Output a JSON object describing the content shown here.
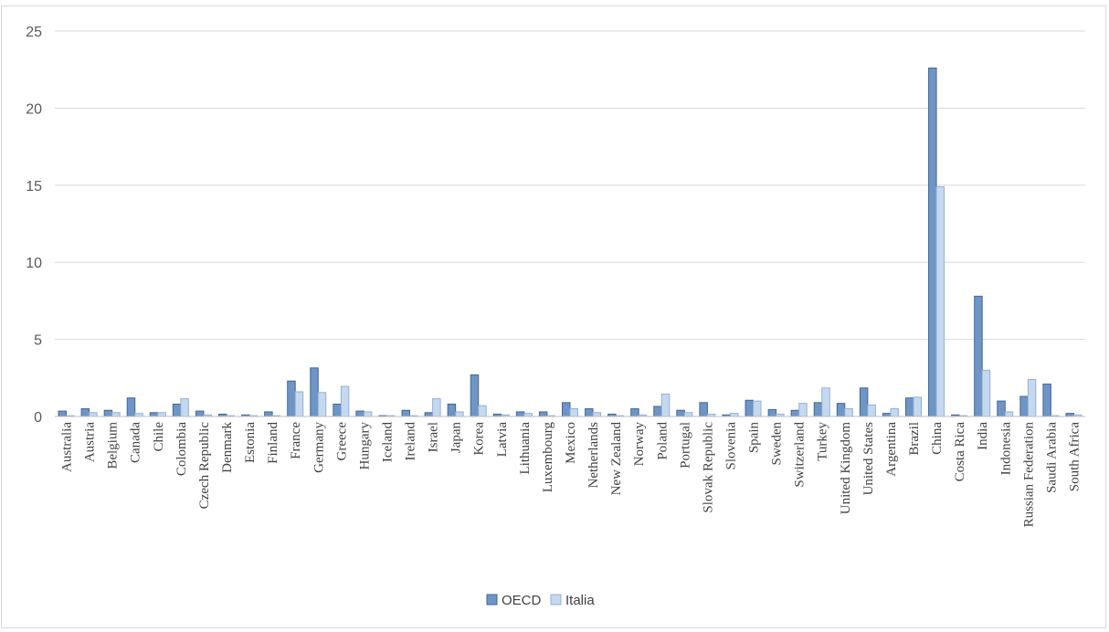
{
  "chart_data": {
    "type": "bar",
    "title": "",
    "xlabel": "",
    "ylabel": "",
    "ylim": [
      0,
      25
    ],
    "yticks": [
      0,
      5,
      10,
      15,
      20,
      25
    ],
    "grid": true,
    "legend_position": "bottom",
    "categories": [
      "Australia",
      "Austria",
      "Belgium",
      "Canada",
      "Chile",
      "Colombia",
      "Czech Republic",
      "Denmark",
      "Estonia",
      "Finland",
      "France",
      "Germany",
      "Greece",
      "Hungary",
      "Iceland",
      "Ireland",
      "Israel",
      "Japan",
      "Korea",
      "Latvia",
      "Lithuania",
      "Luxembourg",
      "Mexico",
      "Netherlands",
      "New Zealand",
      "Norway",
      "Poland",
      "Portugal",
      "Slovak Republic",
      "Slovenia",
      "Spain",
      "Sweden",
      "Switzerland",
      "Turkey",
      "United Kingdom",
      "United States",
      "Argentina",
      "Brazil",
      "China",
      "Costa Rica",
      "India",
      "Indonesia",
      "Russian Federation",
      "Saudi Arabia",
      "South Africa"
    ],
    "series": [
      {
        "name": "OECD",
        "color": "#6f95c4",
        "values": [
          0.35,
          0.5,
          0.4,
          1.2,
          0.25,
          0.8,
          0.35,
          0.15,
          0.1,
          0.3,
          2.3,
          3.15,
          0.8,
          0.35,
          0.05,
          0.4,
          0.25,
          0.8,
          2.7,
          0.15,
          0.3,
          0.3,
          0.9,
          0.5,
          0.15,
          0.5,
          0.65,
          0.4,
          0.9,
          0.1,
          1.05,
          0.45,
          0.4,
          0.9,
          0.85,
          1.85,
          0.2,
          1.2,
          22.6,
          0.1,
          7.8,
          1.0,
          1.3,
          2.1,
          0.2
        ]
      },
      {
        "name": "Italia",
        "color": "#c6d8ee",
        "values": [
          0.05,
          0.25,
          0.25,
          0.2,
          0.25,
          1.15,
          0.1,
          0.05,
          0.05,
          0.05,
          1.6,
          1.55,
          1.95,
          0.3,
          0.05,
          0.05,
          1.15,
          0.3,
          0.7,
          0.1,
          0.2,
          0.05,
          0.5,
          0.25,
          0.05,
          0.1,
          1.45,
          0.25,
          0.15,
          0.2,
          1.0,
          0.15,
          0.85,
          1.85,
          0.5,
          0.75,
          0.5,
          1.25,
          14.9,
          0.05,
          3.0,
          0.3,
          2.4,
          0.05,
          0.1
        ]
      }
    ]
  }
}
